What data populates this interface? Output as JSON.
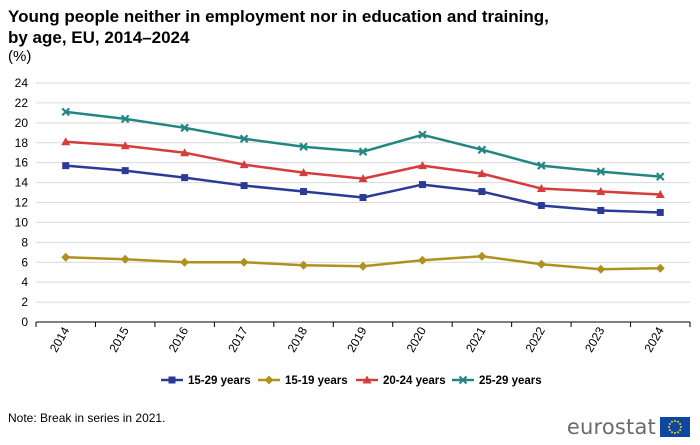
{
  "title": "Young people neither in employment nor in education and training, by age, EU, 2014–2024",
  "unit": "(%)",
  "note": "Note: Break in series in 2021.",
  "logo_text": "eurostat",
  "chart_data": {
    "type": "line",
    "title": "Young people neither in employment nor in education and training, by age, EU, 2014–2024",
    "ylabel": "(%)",
    "xlabel": "",
    "ylim": [
      0,
      24
    ],
    "yticks": [
      0,
      2,
      4,
      6,
      8,
      10,
      12,
      14,
      16,
      18,
      20,
      22,
      24
    ],
    "grid": true,
    "legend_position": "bottom",
    "categories": [
      "2014",
      "2015",
      "2016",
      "2017",
      "2018",
      "2019",
      "2020",
      "2021",
      "2022",
      "2023",
      "2024"
    ],
    "series": [
      {
        "name": "15-29 years",
        "color": "#2a3b97",
        "marker": "square",
        "values": [
          15.7,
          15.2,
          14.5,
          13.7,
          13.1,
          12.5,
          13.8,
          13.1,
          11.7,
          11.2,
          11.0
        ]
      },
      {
        "name": "15-19 years",
        "color": "#b09120",
        "marker": "diamond",
        "values": [
          6.5,
          6.3,
          6.0,
          6.0,
          5.7,
          5.6,
          6.2,
          6.6,
          5.8,
          5.3,
          5.4
        ]
      },
      {
        "name": "20-24 years",
        "color": "#d73c3c",
        "marker": "triangle",
        "values": [
          18.1,
          17.7,
          17.0,
          15.8,
          15.0,
          14.4,
          15.7,
          14.9,
          13.4,
          13.1,
          12.8
        ]
      },
      {
        "name": "25-29 years",
        "color": "#248682",
        "marker": "cross",
        "values": [
          21.1,
          20.4,
          19.5,
          18.4,
          17.6,
          17.1,
          18.8,
          17.3,
          15.7,
          15.1,
          14.6
        ]
      }
    ]
  }
}
